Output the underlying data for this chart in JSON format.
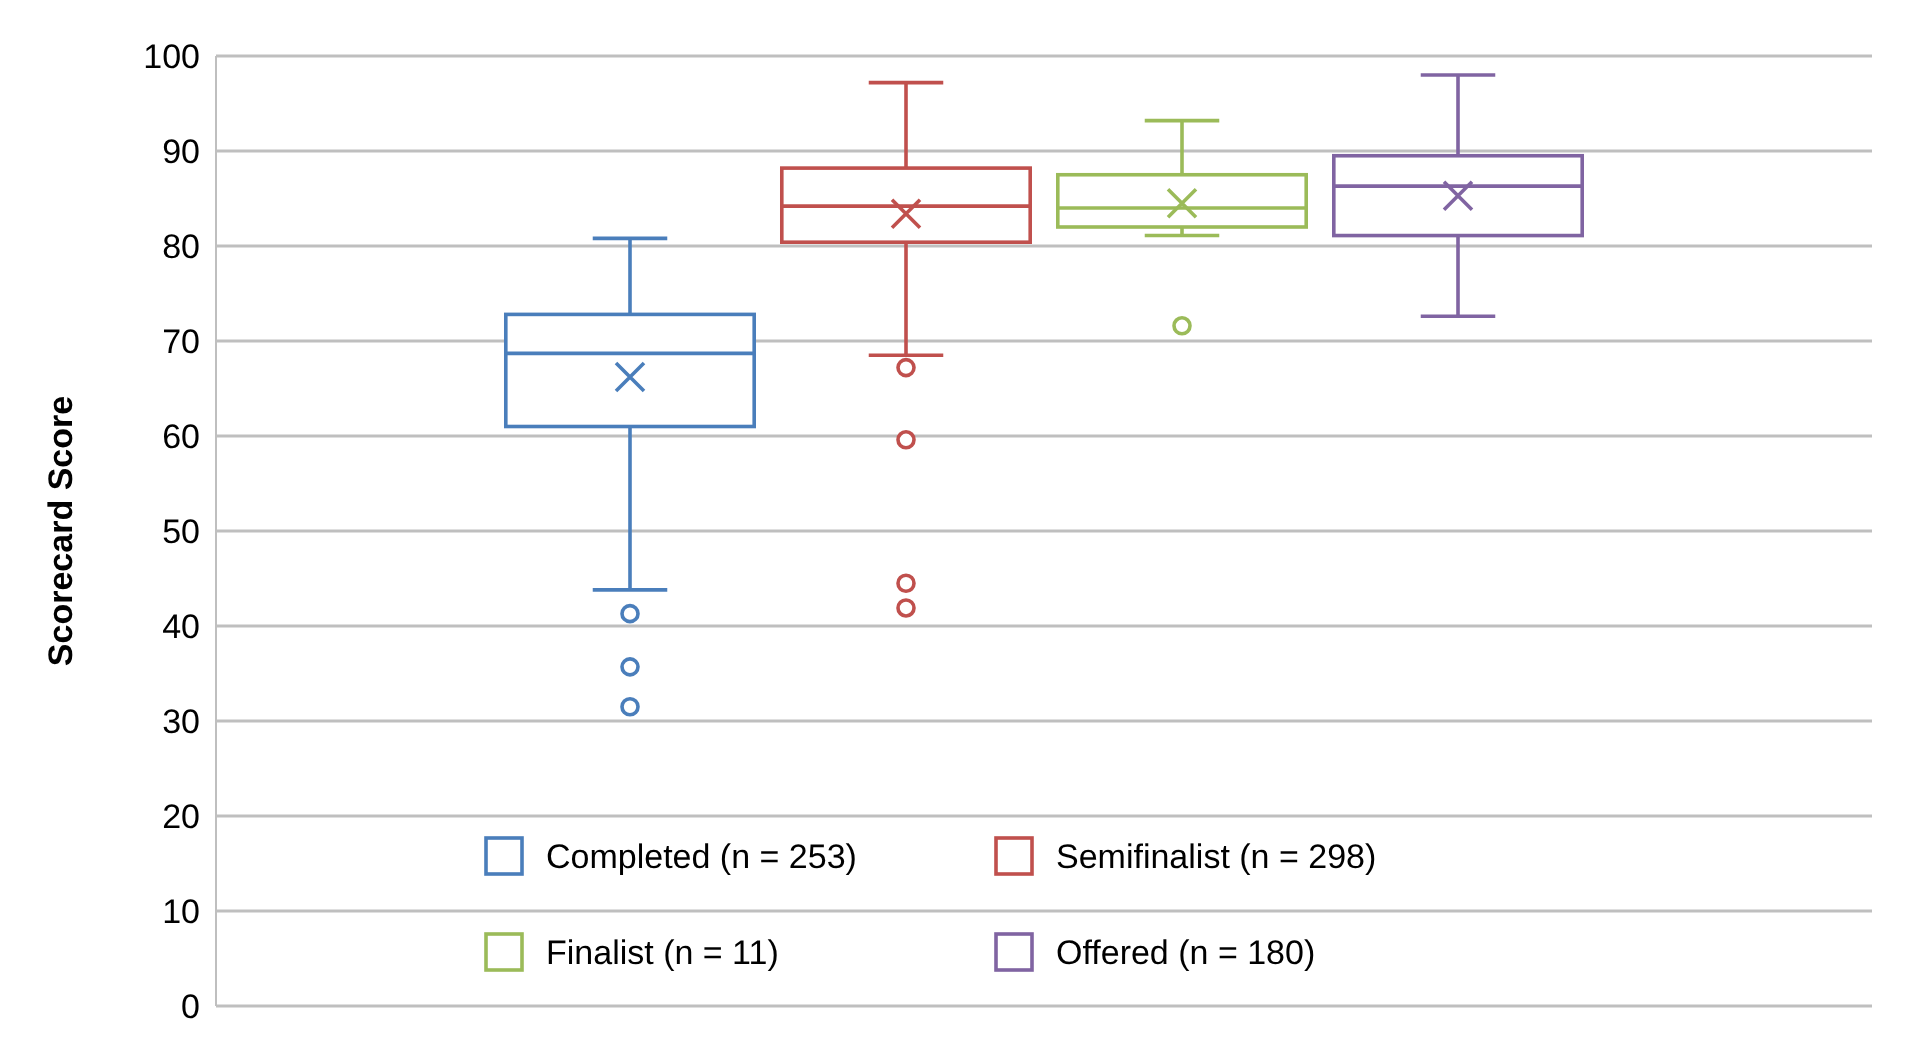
{
  "chart_data": {
    "type": "box",
    "ylabel": "Scorecard Score",
    "categories": [
      null
    ],
    "series": [
      {
        "name": "Completed (n = 253)",
        "color": "#4a7ebb",
        "boxes": [
          {
            "low": 43.8,
            "q1": 61,
            "median": 68.7,
            "q3": 72.8,
            "high": 80.8,
            "mean": 66.2,
            "outliers": [
              41.3,
              35.7,
              31.5
            ]
          }
        ]
      },
      {
        "name": "Semifinalist (n = 298)",
        "color": "#c0504d",
        "boxes": [
          {
            "low": 68.5,
            "q1": 80.4,
            "median": 84.2,
            "q3": 88.2,
            "high": 97.2,
            "mean": 83.4,
            "outliers": [
              67.2,
              59.6,
              44.5,
              41.9
            ]
          }
        ]
      },
      {
        "name": "Finalist (n = 11)",
        "color": "#9bbb59",
        "boxes": [
          {
            "low": 81.1,
            "q1": 82,
            "median": 84,
            "q3": 87.5,
            "high": 93.2,
            "mean": 84.5,
            "outliers": [
              71.6
            ]
          }
        ]
      },
      {
        "name": "Offered (n = 180)",
        "color": "#8064a2",
        "boxes": [
          {
            "low": 72.6,
            "q1": 81.1,
            "median": 86.3,
            "q3": 89.5,
            "high": 98,
            "mean": 85.3
          }
        ]
      }
    ],
    "ylim": [
      0,
      100
    ],
    "yticks": [
      0,
      10,
      20,
      30,
      40,
      50,
      60,
      70,
      80,
      90,
      100
    ],
    "grid": "y",
    "legend": "bottom",
    "tick_labels": "y",
    "marker": "circle"
  }
}
